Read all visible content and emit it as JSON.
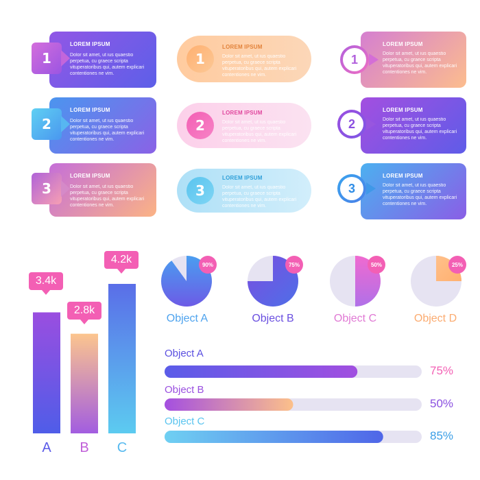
{
  "cards": {
    "left": [
      {
        "num": "1",
        "title": "LOREM IPSUM",
        "body": "Dolor sit amet, ut ius quaestio perpetua, cu graece scripta vituperatoribus qui, autem explicari contentiones ne vim."
      },
      {
        "num": "2",
        "title": "LOREM IPSUM",
        "body": "Dolor sit amet, ut ius quaestio perpetua, cu graece scripta vituperatoribus qui, autem explicari contentiones ne vim."
      },
      {
        "num": "3",
        "title": "LOREM IPSUM",
        "body": "Dolor sit amet, ut ius quaestio perpetua, cu graece scripta vituperatoribus qui, autem explicari contentiones ne vim."
      }
    ],
    "middle": [
      {
        "num": "1",
        "title": "LOREM IPSUM",
        "body": "Dolor sit amet, ut ius quaestio perpetua, cu graece scripta vituperatoribus qui, autem explicari contentiones ne vim."
      },
      {
        "num": "2",
        "title": "LOREM IPSUM",
        "body": "Dolor sit amet, ut ius quaestio perpetua, cu graece scripta vituperatoribus qui, autem explicari contentiones ne vim."
      },
      {
        "num": "3",
        "title": "LOREM IPSUM",
        "body": "Dolor sit amet, ut ius quaestio perpetua, cu graece scripta vituperatoribus qui, autem explicari contentiones ne vim."
      }
    ],
    "right": [
      {
        "num": "1",
        "title": "LOREM IPSUM",
        "body": "Dolor sit amet, ut ius quaestio perpetua, cu graece scripta vituperatoribus qui, autem explicari contentiones ne vim."
      },
      {
        "num": "2",
        "title": "LOREM IPSUM",
        "body": "Dolor sit amet, ut ius quaestio perpetua, cu graece scripta vituperatoribus qui, autem explicari contentiones ne vim."
      },
      {
        "num": "3",
        "title": "LOREM IPSUM",
        "body": "Dolor sit amet, ut ius quaestio perpetua, cu graece scripta vituperatoribus qui, autem explicari contentiones ne vim."
      }
    ]
  },
  "colors": {
    "purple": "#7b4fe0",
    "blue": "#4c8ef0",
    "pink": "#f35fb4",
    "orange": "#fbb080",
    "lightblue": "#5cc7f0",
    "grey": "#e6e3f2"
  },
  "chart_data": [
    {
      "type": "bar",
      "categories": [
        "A",
        "B",
        "C"
      ],
      "values": [
        3.4,
        2.8,
        4.2
      ],
      "value_labels": [
        "3.4k",
        "2.8k",
        "4.2k"
      ],
      "category_colors": [
        "#5b5be8",
        "#c05fd8",
        "#56b9ef"
      ]
    },
    {
      "type": "pie",
      "charts": [
        {
          "name": "Object A",
          "percent": 90,
          "label": "90%",
          "color": "#6b6de8"
        },
        {
          "name": "Object B",
          "percent": 75,
          "label": "75%",
          "color": "#6f4fd8"
        },
        {
          "name": "Object C",
          "percent": 50,
          "label": "50%",
          "color": "#e079d4"
        },
        {
          "name": "Object D",
          "percent": 25,
          "label": "25%",
          "color": "#fbb080"
        }
      ]
    },
    {
      "type": "bar",
      "orientation": "horizontal",
      "categories": [
        "Object A",
        "Object B",
        "Object C"
      ],
      "values": [
        75,
        50,
        85
      ],
      "value_labels": [
        "75%",
        "50%",
        "85%"
      ],
      "xlim": [
        0,
        100
      ]
    }
  ]
}
